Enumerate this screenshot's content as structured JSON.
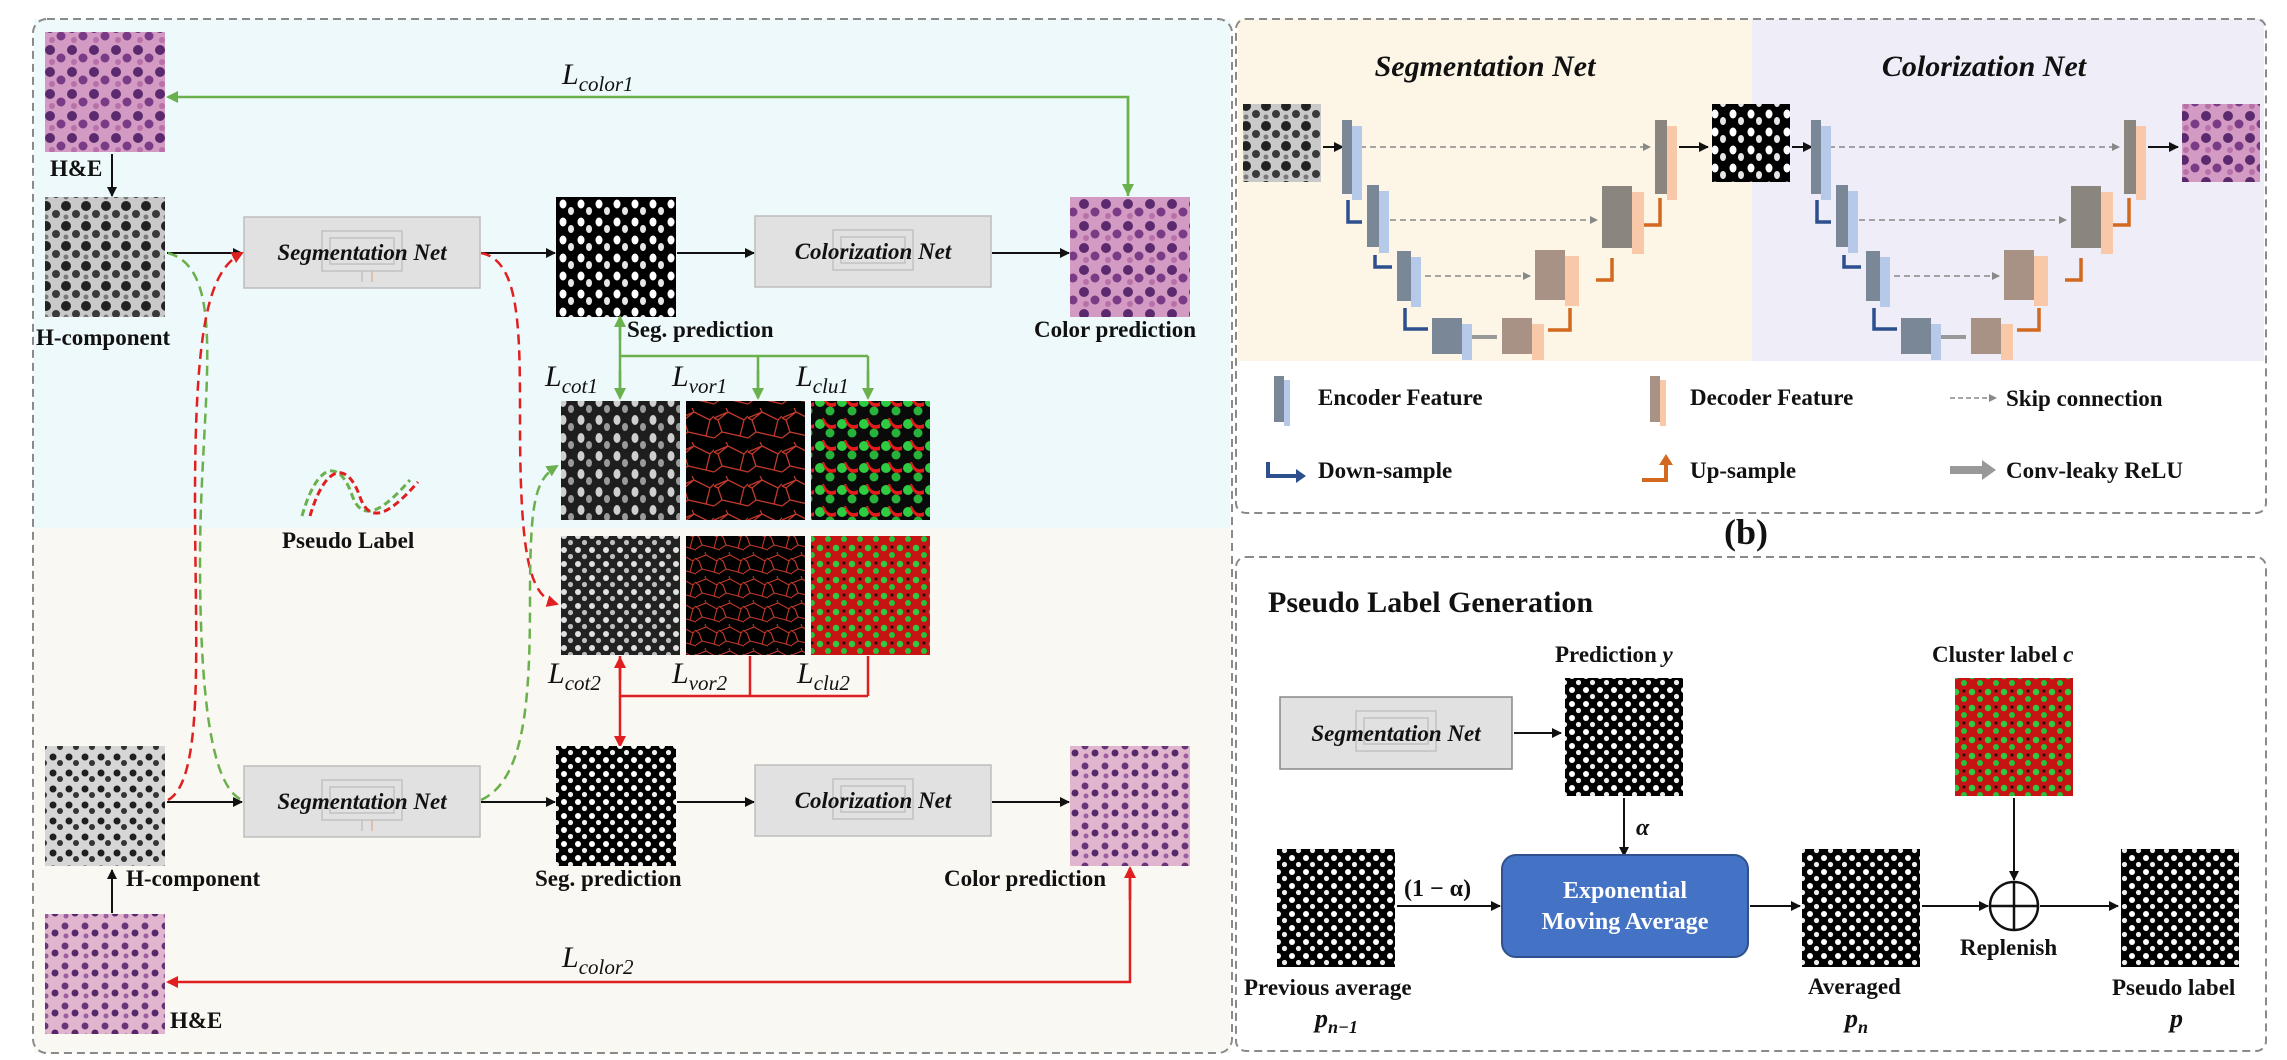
{
  "panel_a": {
    "he_top_label": "H&E",
    "h_component_top_label": "H-component",
    "seg_net_top_label": "Segmentation Net",
    "seg_pred_top_label": "Seg. prediction",
    "color_net_top_label": "Colorization Net",
    "color_pred_top_label": "Color prediction",
    "loss_color1": {
      "main": "L",
      "sub": "color1"
    },
    "loss_cot1": {
      "main": "L",
      "sub": "cot1"
    },
    "loss_vor1": {
      "main": "L",
      "sub": "vor1"
    },
    "loss_clu1": {
      "main": "L",
      "sub": "clu1"
    },
    "pseudo_label": "Pseudo Label",
    "loss_cot2": {
      "main": "L",
      "sub": "cot2"
    },
    "loss_vor2": {
      "main": "L",
      "sub": "vor2"
    },
    "loss_clu2": {
      "main": "L",
      "sub": "clu2"
    },
    "h_component_bottom_label": "H-component",
    "seg_net_bottom_label": "Segmentation Net",
    "seg_pred_bottom_label": "Seg. prediction",
    "color_net_bottom_label": "Colorization Net",
    "color_pred_bottom_label": "Color prediction",
    "loss_color2": {
      "main": "L",
      "sub": "color2"
    },
    "he_bottom_label": "H&E"
  },
  "panel_b": {
    "seg_title": "Segmentation Net",
    "color_title": "Colorization Net",
    "legend_encoder": "Encoder Feature",
    "legend_decoder": "Decoder Feature",
    "legend_skip": "Skip connection",
    "legend_down": "Down-sample",
    "legend_up": "Up-sample",
    "legend_conv": "Conv-leaky ReLU",
    "caption": "(b)"
  },
  "panel_c": {
    "title": "Pseudo Label Generation",
    "seg_net_label": "Segmentation Net",
    "prediction_label": "Prediction ",
    "prediction_symbol": "y",
    "cluster_label": "Cluster label ",
    "cluster_symbol": "c",
    "alpha": "α",
    "one_minus_alpha": "(1 − α)",
    "ema_line1": "Exponential",
    "ema_line2": "Moving Average",
    "prev_avg_label": "Previous average",
    "prev_avg_symbol": {
      "main": "p",
      "sub": "n−1"
    },
    "averaged_label": "Averaged",
    "averaged_symbol": {
      "main": "p",
      "sub": "n"
    },
    "replenish_label": "Replenish",
    "pseudo_label": "Pseudo label",
    "pseudo_symbol": "p"
  },
  "colors": {
    "green_arrow": "#6ab04c",
    "red_arrow": "#e02020",
    "blue_arrow": "#2d4f8e",
    "orange_arrow": "#d2691e",
    "ema_box": "#4472c4",
    "top_bg": "#eef9fb",
    "bottom_bg": "#faf8f2"
  }
}
